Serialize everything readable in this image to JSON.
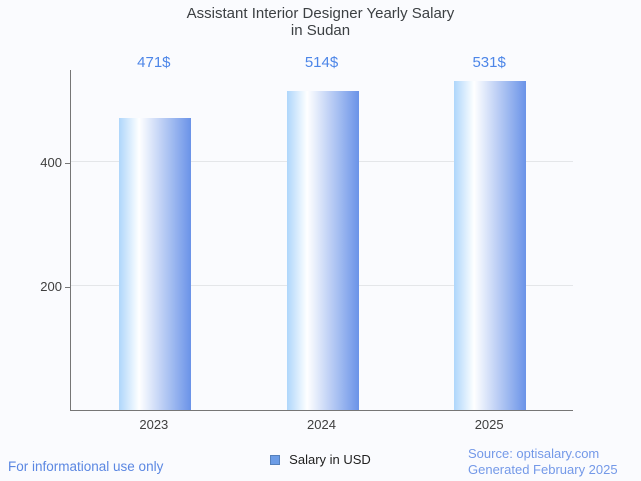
{
  "title": {
    "line1": "Assistant Interior Designer Yearly Salary",
    "line2": "in Sudan"
  },
  "chart_data": {
    "type": "bar",
    "title": "Assistant Interior Designer Yearly Salary in Sudan",
    "categories": [
      "2023",
      "2024",
      "2025"
    ],
    "values": [
      471,
      514,
      531
    ],
    "value_labels": [
      "471$",
      "514$",
      "531$"
    ],
    "series_name": "Salary in USD",
    "legend": [
      "Salary in USD"
    ],
    "legend_position": "bottom",
    "xlabel": "",
    "ylabel": "",
    "ylim": [
      0,
      550
    ],
    "yticks": [
      200,
      400
    ],
    "grid": true
  },
  "legend_row": {
    "marker_icon": "square-icon"
  },
  "footer": {
    "left": "For informational use only",
    "source_line1": "Source: optisalary.com",
    "source_line2": "Generated February 2025"
  },
  "colors": {
    "background": "#fafbfe",
    "title_text": "#3c4043",
    "tick_text": "#3f3f3f",
    "axis_line": "#767676",
    "gridline": "#e4e6e9",
    "value_label": "#4d86e8",
    "footer_left": "#5b87e2",
    "footer_right": "#7499e8",
    "legend_marker_fill": "#6c9ce6",
    "legend_marker_border": "#5580bb",
    "legend_text": "#1f1f1f",
    "bar_gradient": [
      "#aed6fb",
      "#ffffff",
      "#6a93e8"
    ]
  }
}
